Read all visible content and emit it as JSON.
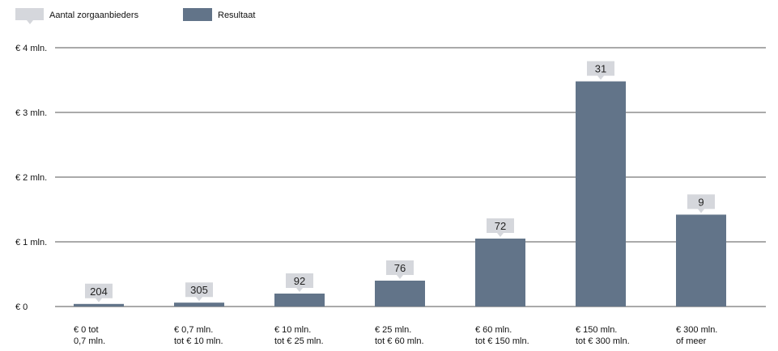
{
  "legend": {
    "count_label": "Aantal zorgaanbieders",
    "result_label": "Resultaat"
  },
  "colors": {
    "bar": "#627489",
    "count_box": "#d5d7dc",
    "grid": "#555555"
  },
  "chart_data": {
    "type": "bar",
    "legend_position": "top-left",
    "grid": true,
    "ylim": [
      0,
      4
    ],
    "yticks": [
      {
        "value": 0,
        "label": "€ 0"
      },
      {
        "value": 1,
        "label": "€ 1 mln."
      },
      {
        "value": 2,
        "label": "€ 2 mln."
      },
      {
        "value": 3,
        "label": "€ 3 mln."
      },
      {
        "value": 4,
        "label": "€ 4 mln."
      }
    ],
    "categories": [
      [
        "€ 0 tot",
        "0,7 mln."
      ],
      [
        "€ 0,7 mln.",
        "tot € 10 mln."
      ],
      [
        "€ 10 mln.",
        "tot € 25 mln."
      ],
      [
        "€ 25 mln.",
        "tot € 60 mln."
      ],
      [
        "€ 60 mln.",
        "tot € 150 mln."
      ],
      [
        "€ 150 mln.",
        "tot € 300 mln."
      ],
      [
        "€ 300 mln.",
        "of meer"
      ]
    ],
    "series": [
      {
        "name": "Resultaat",
        "values": [
          0.04,
          0.06,
          0.2,
          0.4,
          1.05,
          3.48,
          1.42
        ]
      },
      {
        "name": "Aantal zorgaanbieders",
        "values": [
          "204",
          "305",
          "92",
          "76",
          "72",
          "31",
          "9"
        ]
      }
    ]
  }
}
